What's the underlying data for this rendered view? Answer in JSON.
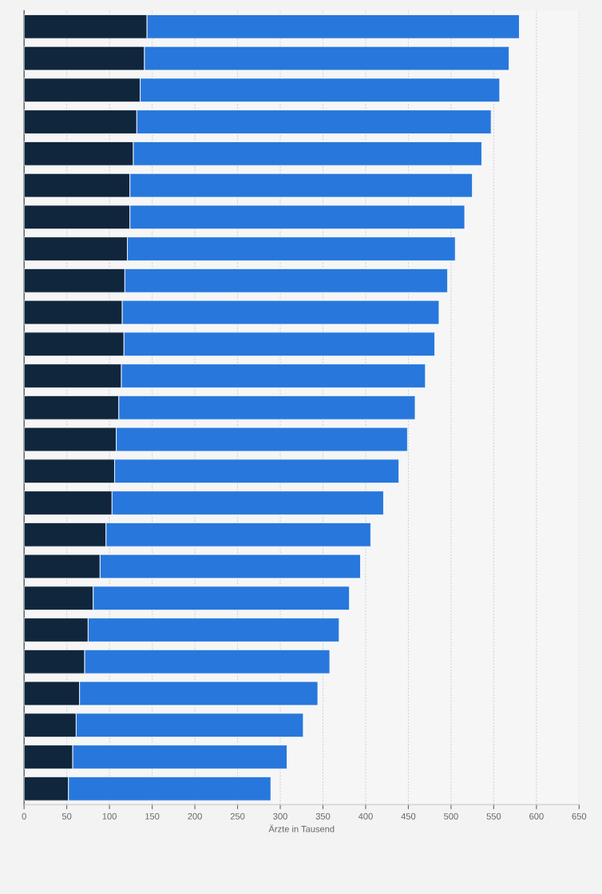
{
  "chart_data": {
    "type": "bar",
    "orientation": "horizontal",
    "stacked": true,
    "xlabel": "Ärzte in Tausend",
    "categories": [
      null,
      null,
      null,
      null,
      null,
      null,
      null,
      null,
      null,
      null,
      null,
      null,
      null,
      null,
      null,
      null,
      null,
      null,
      null,
      null,
      null,
      null,
      null,
      null,
      null
    ],
    "series": [
      {
        "color": "#10263d",
        "values": [
          144,
          141,
          136,
          132,
          128,
          124,
          124,
          121,
          118,
          115,
          117,
          114,
          111,
          108,
          106,
          103,
          96,
          89,
          81,
          75,
          71,
          65,
          61,
          57,
          52
        ]
      },
      {
        "color": "#2877dc",
        "values": [
          436,
          427,
          421,
          415,
          408,
          401,
          392,
          384,
          378,
          371,
          364,
          356,
          347,
          341,
          333,
          318,
          310,
          305,
          300,
          294,
          287,
          279,
          266,
          251,
          237
        ]
      }
    ],
    "xlim": [
      0,
      650
    ],
    "xticks": [
      0,
      50,
      100,
      150,
      200,
      250,
      300,
      350,
      400,
      450,
      500,
      550,
      600,
      650
    ],
    "grid": "x",
    "tick_labels": "x"
  }
}
